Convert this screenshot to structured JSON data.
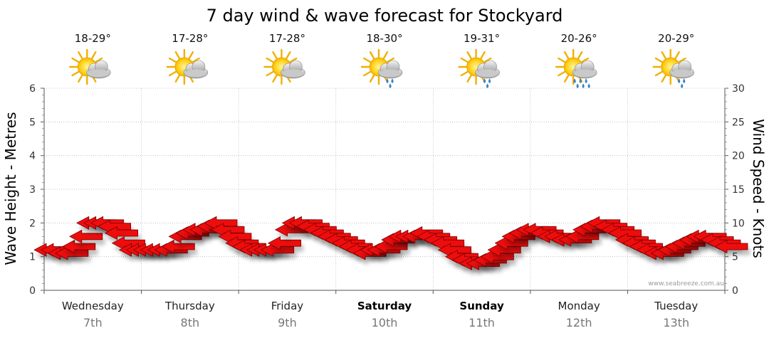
{
  "chart_data": {
    "type": "line",
    "title": "7 day wind & wave forecast for Stockyard",
    "ylabel": "Wave Height - Metres",
    "ylabel_right": "Wind Speed - Knots",
    "ylim": [
      0,
      6
    ],
    "ylim_right": [
      0,
      30
    ],
    "yticks": [
      "0",
      "1",
      "2",
      "3",
      "4",
      "5",
      "6"
    ],
    "yticks_right": [
      "0",
      "5",
      "10",
      "15",
      "20",
      "25",
      "30"
    ],
    "credit": "www.seabreeze.com.au",
    "grid": true,
    "days": [
      {
        "name": "Wednesday",
        "date": "7th",
        "temp": "18-29°",
        "weather": "partly-cloudy",
        "bold": false
      },
      {
        "name": "Thursday",
        "date": "8th",
        "temp": "17-28°",
        "weather": "partly-cloudy",
        "bold": false
      },
      {
        "name": "Friday",
        "date": "9th",
        "temp": "17-28°",
        "weather": "partly-cloudy",
        "bold": false
      },
      {
        "name": "Saturday",
        "date": "10th",
        "temp": "18-30°",
        "weather": "showers",
        "bold": true
      },
      {
        "name": "Sunday",
        "date": "11th",
        "temp": "19-31°",
        "weather": "showers",
        "bold": true
      },
      {
        "name": "Monday",
        "date": "12th",
        "temp": "20-26°",
        "weather": "rain",
        "bold": false
      },
      {
        "name": "Tuesday",
        "date": "13th",
        "temp": "20-29°",
        "weather": "showers",
        "bold": false
      }
    ],
    "series": [
      {
        "name": "Wind Speed",
        "units": "knots",
        "marker": "arrow",
        "color": "#ee1111",
        "values": [
          6,
          6,
          5.5,
          5.5,
          6.5,
          8,
          10,
          10,
          10,
          9.5,
          8.5,
          7,
          6,
          6,
          6,
          6,
          6,
          6,
          6.5,
          8,
          8.5,
          9,
          9,
          9.5,
          10,
          9,
          8,
          7,
          6.5,
          6,
          6,
          6,
          6,
          7,
          9,
          10,
          10,
          9.5,
          9,
          8.5,
          8,
          7.5,
          7,
          6.5,
          6,
          5.5,
          6,
          6,
          6.5,
          7.5,
          8,
          8,
          8,
          8.5,
          8,
          7.5,
          7,
          6,
          5,
          4.5,
          4,
          4,
          4.5,
          5,
          6,
          7,
          8,
          8.5,
          9,
          9,
          8.5,
          8,
          8,
          7.5,
          7.5,
          8,
          9,
          9.5,
          10,
          9.5,
          9,
          8.5,
          7.5,
          7,
          6.5,
          6,
          5.5,
          5.5,
          6,
          6.5,
          7,
          7.5,
          8,
          8,
          7.5,
          7,
          6.5
        ]
      }
    ]
  }
}
